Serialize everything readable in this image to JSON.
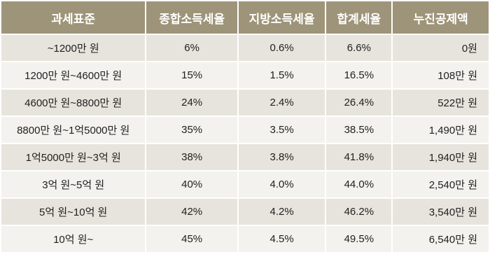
{
  "table": {
    "headers": [
      "과세표준",
      "종합소득세율",
      "지방소득세율",
      "합계세율",
      "누진공제액"
    ],
    "rows": [
      [
        "~1200만 원",
        "6%",
        "0.6%",
        "6.6%",
        "0원"
      ],
      [
        "1200만 원~4600만 원",
        "15%",
        "1.5%",
        "16.5%",
        "108만 원"
      ],
      [
        "4600만 원~8800만 원",
        "24%",
        "2.4%",
        "26.4%",
        "522만 원"
      ],
      [
        "8800만 원~1억5000만 원",
        "35%",
        "3.5%",
        "38.5%",
        "1,490만 원"
      ],
      [
        "1억5000만 원~3억 원",
        "38%",
        "3.8%",
        "41.8%",
        "1,940만 원"
      ],
      [
        "3억 원~5억 원",
        "40%",
        "4.0%",
        "44.0%",
        "2,540만 원"
      ],
      [
        "5억 원~10억 원",
        "42%",
        "4.2%",
        "46.2%",
        "3,540만 원"
      ],
      [
        "10억 원~",
        "45%",
        "4.5%",
        "49.5%",
        "6,540만 원"
      ]
    ]
  },
  "colors": {
    "header_bg": "#9e9479",
    "row_odd": "#e7e4dd",
    "row_even": "#f4f2ee"
  }
}
